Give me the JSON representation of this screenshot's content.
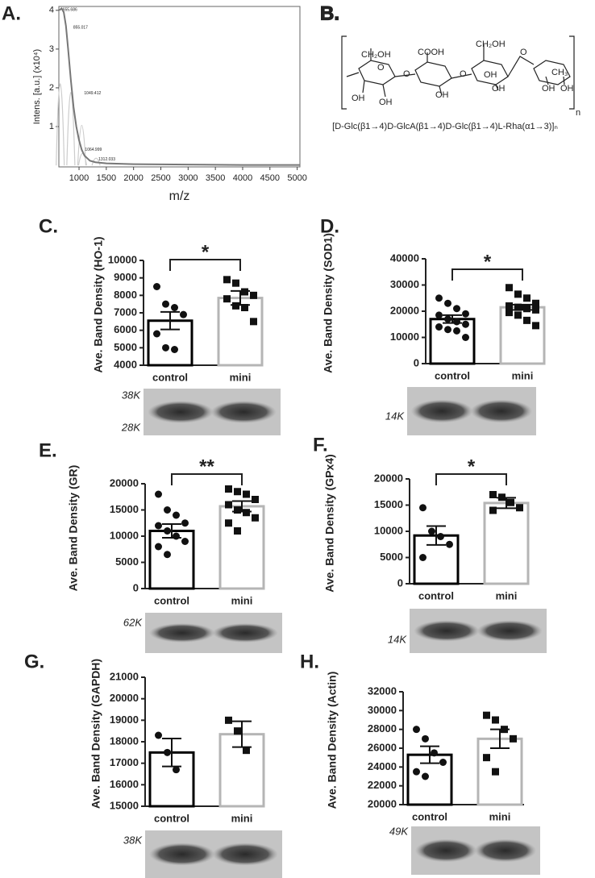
{
  "structure": {
    "panel_label": "B.",
    "formula": "[D-Glc(β1→4)D-GlcA(β1→4)D-Glc(β1→4)L-Rha(α1→3)]ₙ",
    "labels": [
      "CH₂OH",
      "COOH",
      "CH₂OH",
      "O",
      "CH₃",
      "OH",
      "OH",
      "OH",
      "OH",
      "OH",
      "OH",
      "OH",
      "O",
      "O",
      "O",
      "n"
    ]
  },
  "chart_data": [
    {
      "type": "line",
      "panel_label": "A.",
      "x_label": "m/z",
      "y_label": "Intens. [a.u.] (x10⁴)",
      "x": [
        640,
        680,
        720,
        760,
        800,
        850,
        900,
        950,
        1000,
        1050,
        1100,
        1200,
        1300,
        1500,
        2000,
        3000,
        4000,
        5050
      ],
      "series": [
        {
          "color": "#777777",
          "values": [
            4.0,
            4.05,
            3.95,
            3.6,
            3.0,
            2.2,
            1.5,
            1.0,
            0.65,
            0.4,
            0.25,
            0.12,
            0.08,
            0.05,
            0.03,
            0.02,
            0.01,
            0.01
          ]
        }
      ],
      "peaks": {
        "color": "#cccccc",
        "x": [
          655,
          850,
          1050,
          1065,
          1312
        ],
        "values": [
          4.05,
          3.6,
          1.9,
          0.45,
          0.2
        ],
        "labels": [
          "655.686",
          "855.017",
          "1049.412",
          "1064.999",
          "1312.033"
        ]
      },
      "xlim": [
        630,
        5050
      ],
      "xticks": [
        1000,
        1500,
        2000,
        2500,
        3000,
        3500,
        4000,
        4500,
        5000
      ],
      "ylim": [
        -0.04,
        4.1
      ],
      "yticks": [
        1,
        2,
        3,
        4
      ]
    },
    {
      "type": "bar",
      "panel_label": "C.",
      "y_label": "Ave. Band Density (HO-1)",
      "categories": [
        "control",
        "mini"
      ],
      "values": [
        6550,
        7850
      ],
      "errors": [
        500,
        400
      ],
      "points": [
        [
          8500,
          7500,
          7300,
          6900,
          5800,
          5000,
          4900
        ],
        [
          8900,
          8700,
          8200,
          8000,
          7800,
          7400,
          7300,
          6500
        ]
      ],
      "bar_colors": [
        "#000000",
        "#b5b5b5"
      ],
      "ylim": [
        4000,
        10000
      ],
      "yticks": [
        4000,
        5000,
        6000,
        7000,
        8000,
        9000,
        10000
      ],
      "significance": "*",
      "blot_labels": [
        "38K",
        "28K"
      ]
    },
    {
      "type": "bar",
      "panel_label": "D.",
      "y_label": "Ave. Band Density (SOD1)",
      "categories": [
        "control",
        "mini"
      ],
      "values": [
        17000,
        21500
      ],
      "errors": [
        1500,
        1000
      ],
      "points": [
        [
          25000,
          23000,
          21000,
          19000,
          18500,
          17000,
          16000,
          15000,
          14000,
          13000,
          12500,
          10000
        ],
        [
          29000,
          26500,
          25000,
          23000,
          22000,
          21500,
          21000,
          20500,
          19500,
          18500,
          16500,
          14500
        ]
      ],
      "bar_colors": [
        "#000000",
        "#b5b5b5"
      ],
      "ylim": [
        0,
        40000
      ],
      "yticks": [
        0,
        10000,
        20000,
        30000,
        40000
      ],
      "significance": "*",
      "blot_labels": [
        "14K"
      ]
    },
    {
      "type": "bar",
      "panel_label": "E.",
      "y_label": "Ave. Band Density (GR)",
      "categories": [
        "control",
        "mini"
      ],
      "values": [
        11000,
        15700
      ],
      "errors": [
        1300,
        1000
      ],
      "points": [
        [
          18000,
          15000,
          14000,
          12500,
          12000,
          11000,
          10000,
          9000,
          8000,
          6500
        ],
        [
          19000,
          18500,
          18000,
          17000,
          16000,
          15000,
          14500,
          13500,
          12500,
          11000
        ]
      ],
      "bar_colors": [
        "#000000",
        "#b5b5b5"
      ],
      "ylim": [
        0,
        20000
      ],
      "yticks": [
        0,
        5000,
        10000,
        15000,
        20000
      ],
      "significance": "**",
      "blot_labels": [
        "62K"
      ]
    },
    {
      "type": "bar",
      "panel_label": "F.",
      "y_label": "Ave. Band Density (GPx4)",
      "categories": [
        "control",
        "mini"
      ],
      "values": [
        9200,
        15400
      ],
      "errors": [
        1800,
        1000
      ],
      "points": [
        [
          14500,
          10000,
          9000,
          7500,
          5000
        ],
        [
          17000,
          16500,
          15500,
          14500,
          14000
        ]
      ],
      "bar_colors": [
        "#000000",
        "#b5b5b5"
      ],
      "ylim": [
        0,
        20000
      ],
      "yticks": [
        0,
        5000,
        10000,
        15000,
        20000
      ],
      "significance": "*",
      "blot_labels": [
        "14K"
      ]
    },
    {
      "type": "bar",
      "panel_label": "G.",
      "y_label": "Ave. Band Density (GAPDH)",
      "categories": [
        "control",
        "mini"
      ],
      "values": [
        17500,
        18350
      ],
      "errors": [
        650,
        600
      ],
      "points": [
        [
          18300,
          17500,
          16700
        ],
        [
          19000,
          18500,
          17600
        ]
      ],
      "bar_colors": [
        "#000000",
        "#b5b5b5"
      ],
      "ylim": [
        15000,
        21000
      ],
      "yticks": [
        15000,
        16000,
        17000,
        18000,
        19000,
        20000,
        21000
      ],
      "blot_labels": [
        "38K"
      ]
    },
    {
      "type": "bar",
      "panel_label": "H.",
      "y_label": "Ave. Band Density (Actin)",
      "categories": [
        "control",
        "mini"
      ],
      "values": [
        25300,
        27000
      ],
      "errors": [
        900,
        1000
      ],
      "points": [
        [
          28000,
          27000,
          25500,
          24500,
          23500,
          23000
        ],
        [
          29500,
          29000,
          28000,
          27000,
          25000,
          23500
        ]
      ],
      "bar_colors": [
        "#000000",
        "#b5b5b5"
      ],
      "ylim": [
        20000,
        32000
      ],
      "yticks": [
        20000,
        22000,
        24000,
        26000,
        28000,
        30000,
        32000
      ],
      "blot_labels": [
        "49K"
      ]
    }
  ]
}
